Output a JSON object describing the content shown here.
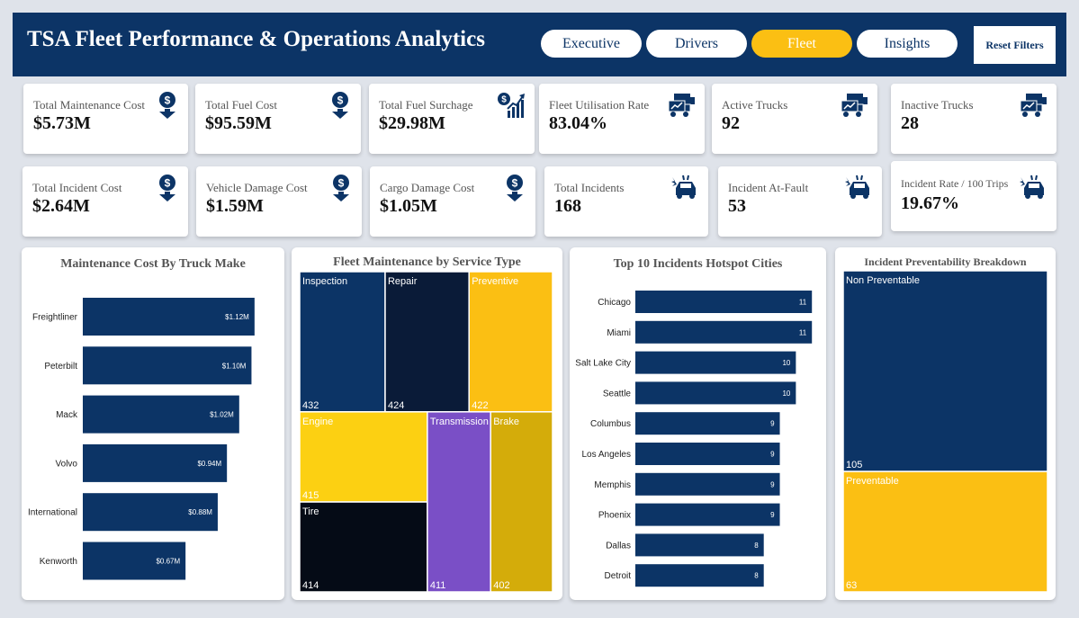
{
  "header": {
    "title": "TSA Fleet Performance & Operations Analytics",
    "tabs": [
      {
        "label": "Executive",
        "active": false
      },
      {
        "label": "Drivers",
        "active": false
      },
      {
        "label": "Fleet",
        "active": true
      },
      {
        "label": "Insights",
        "active": false
      }
    ],
    "reset_label": "Reset Filters"
  },
  "kpis_row1": [
    {
      "label": "Total Maintenance Cost",
      "value": "$5.73M",
      "icon": "dollar-down-icon"
    },
    {
      "label": "Total Fuel Cost",
      "value": "$95.59M",
      "icon": "dollar-down-icon"
    },
    {
      "label": "Total Fuel Surchage",
      "value": "$29.98M",
      "icon": "dollar-growth-icon"
    },
    {
      "label": "Fleet Utilisation Rate",
      "value": "83.04%",
      "icon": "fleet-icon"
    },
    {
      "label": "Active Trucks",
      "value": "92",
      "icon": "fleet-icon"
    },
    {
      "label": "Inactive Trucks",
      "value": "28",
      "icon": "fleet-icon"
    }
  ],
  "kpis_row2": [
    {
      "label": "Total Incident Cost",
      "value": "$2.64M",
      "icon": "dollar-down-icon"
    },
    {
      "label": "Vehicle Damage Cost",
      "value": "$1.59M",
      "icon": "dollar-down-icon"
    },
    {
      "label": "Cargo Damage Cost",
      "value": "$1.05M",
      "icon": "dollar-down-icon"
    },
    {
      "label": "Total Incidents",
      "value": "168",
      "icon": "car-crash-icon"
    },
    {
      "label": "Incident At-Fault",
      "value": "53",
      "icon": "car-crash-icon"
    },
    {
      "label": "Incident Rate / 100 Trips",
      "value": "19.67%",
      "icon": "car-crash-icon"
    }
  ],
  "colors": {
    "navy": "#0c3466",
    "yellow": "#fbbf13",
    "dark": "#0a1b38",
    "black": "#050b16",
    "purple": "#7a4fc6",
    "gold": "#d4ac0a",
    "engine_yellow": "#fcd012"
  },
  "chart_data": [
    {
      "type": "bar",
      "title": "Maintenance Cost By Truck Make",
      "orientation": "horizontal",
      "categories": [
        "Freightliner",
        "Peterbilt",
        "Mack",
        "Volvo",
        "International",
        "Kenworth"
      ],
      "values": [
        1.12,
        1.1,
        1.02,
        0.94,
        0.88,
        0.67
      ],
      "value_labels": [
        "$1.12M",
        "$1.10M",
        "$1.02M",
        "$0.94M",
        "$0.88M",
        "$0.67M"
      ],
      "unit": "$M",
      "xlim": [
        0,
        1.25
      ]
    },
    {
      "type": "treemap",
      "title": "Fleet Maintenance by Service Type",
      "categories": [
        "Inspection",
        "Repair",
        "Preventive",
        "Engine",
        "Transmission",
        "Brake",
        "Tire"
      ],
      "values": [
        432,
        424,
        422,
        415,
        411,
        402,
        414
      ]
    },
    {
      "type": "bar",
      "title": "Top 10 Incidents Hotspot Cities",
      "orientation": "horizontal",
      "categories": [
        "Chicago",
        "Miami",
        "Salt Lake City",
        "Seattle",
        "Columbus",
        "Los Angeles",
        "Memphis",
        "Phoenix",
        "Dallas",
        "Detroit"
      ],
      "values": [
        11,
        11,
        10,
        10,
        9,
        9,
        9,
        9,
        8,
        8
      ],
      "xlim": [
        0,
        11.1
      ]
    },
    {
      "type": "treemap",
      "title": "Incident Preventability Breakdown",
      "categories": [
        "Non Preventable",
        "Preventable"
      ],
      "values": [
        105,
        63
      ]
    }
  ]
}
